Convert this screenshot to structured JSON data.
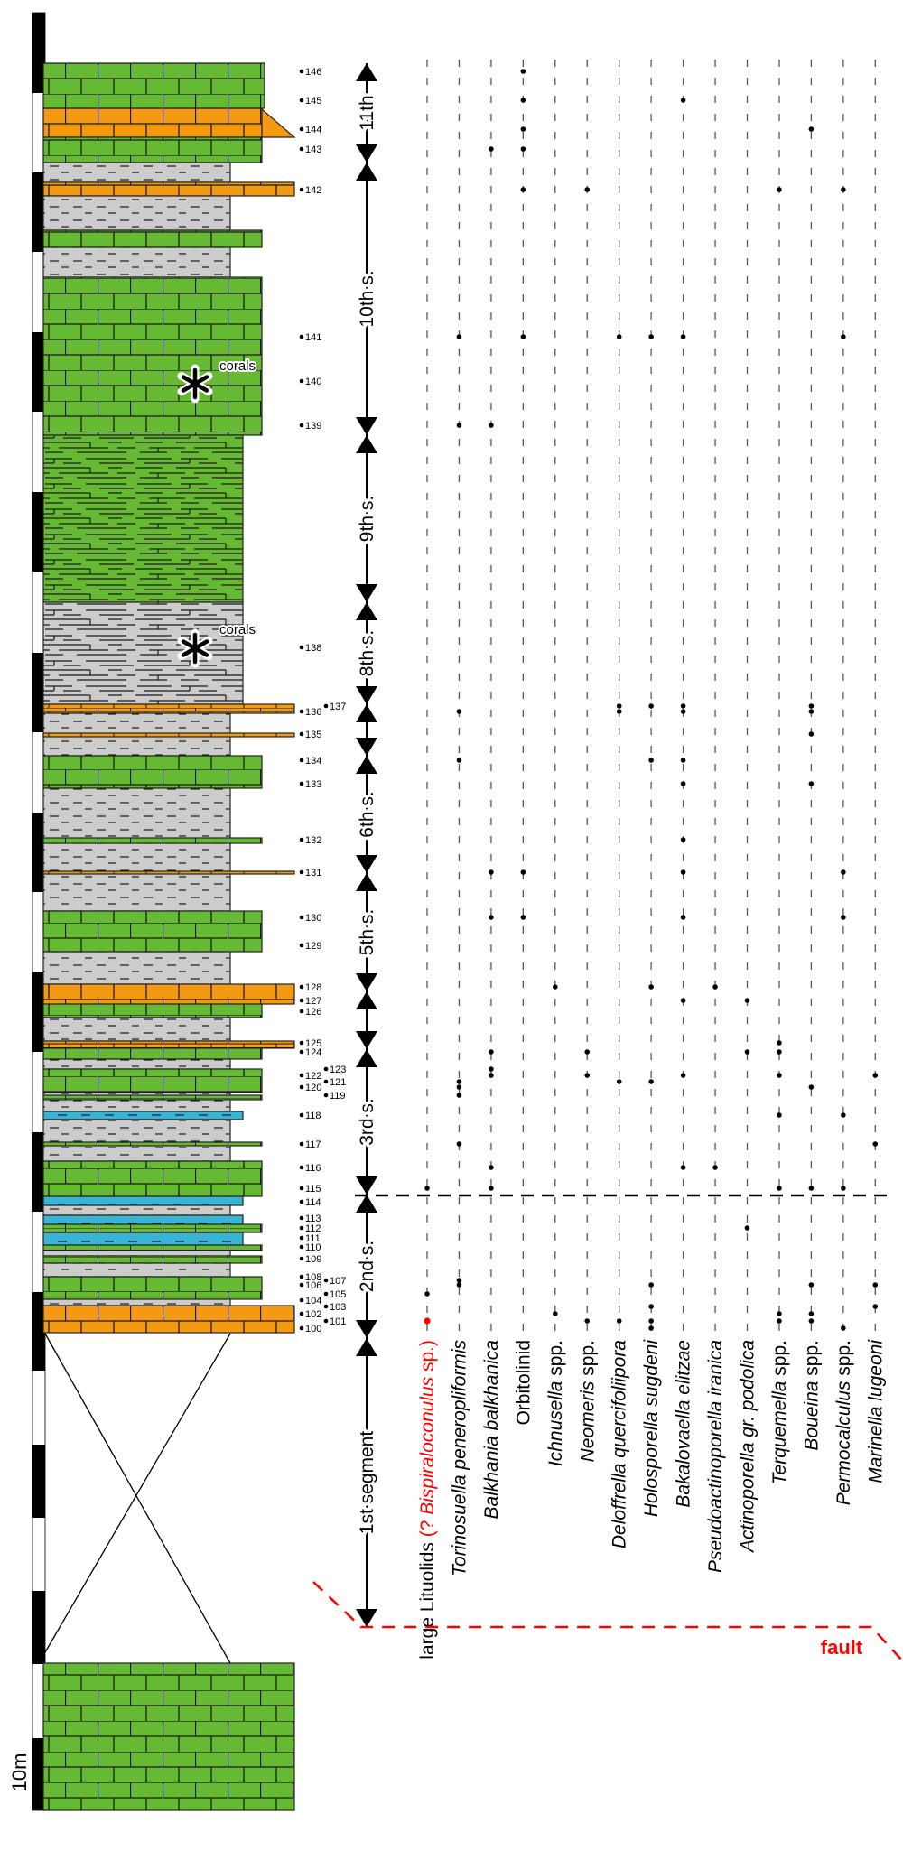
{
  "scale_bar": {
    "label": "10m"
  },
  "colors": {
    "limestone": "#66b933",
    "orange_limestone": "#f39a12",
    "shale": "#cccccc",
    "blue_bed": "#3ab4d5",
    "highlight": "#ff0000",
    "fault": "#ff0000"
  },
  "annotations": {
    "coral_upper": "corals",
    "coral_lower": "corals",
    "fault": "fault"
  },
  "segments": [
    {
      "label": "11th"
    },
    {
      "label": "10th s."
    },
    {
      "label": "9th s."
    },
    {
      "label": "8th s."
    },
    {
      "label": ""
    },
    {
      "label": "6th s."
    },
    {
      "label": "5th s."
    },
    {
      "label": ""
    },
    {
      "label": "3rd s."
    },
    {
      "label": "2nd s."
    },
    {
      "label": "1st segment"
    }
  ],
  "samples": [
    146,
    145,
    144,
    143,
    142,
    141,
    140,
    139,
    138,
    137,
    136,
    135,
    134,
    133,
    132,
    131,
    130,
    129,
    128,
    127,
    126,
    125,
    124,
    123,
    122,
    121,
    120,
    119,
    118,
    117,
    116,
    115,
    114,
    113,
    112,
    111,
    110,
    109,
    108,
    107,
    106,
    105,
    104,
    103,
    102,
    101,
    100
  ],
  "taxa": [
    {
      "parts": [
        {
          "text": "large Lituolids ",
          "italic": false,
          "red": false
        },
        {
          "text": "(? ",
          "italic": false,
          "red": true
        },
        {
          "text": "Bispiraloconulus",
          "italic": true,
          "red": true
        },
        {
          "text": " sp.)",
          "italic": false,
          "red": true
        }
      ],
      "occurrences": [
        115,
        105,
        101
      ],
      "highlighted_samples": [
        101
      ]
    },
    {
      "parts": [
        {
          "text": "Torinosuella peneropliformis",
          "italic": true,
          "red": false
        }
      ],
      "occurrences": [
        141,
        139,
        136,
        134,
        121,
        120,
        119,
        117,
        107,
        106
      ]
    },
    {
      "parts": [
        {
          "text": "Balkhania balkhanica",
          "italic": true,
          "red": false
        }
      ],
      "occurrences": [
        143,
        139,
        131,
        130,
        124,
        123,
        122,
        116,
        115
      ]
    },
    {
      "parts": [
        {
          "text": "Orbitolinid",
          "italic": false,
          "red": false
        }
      ],
      "occurrences": [
        146,
        145,
        144,
        143,
        142,
        141,
        131,
        130
      ]
    },
    {
      "parts": [
        {
          "text": "Ichnusella",
          "italic": true,
          "red": false
        },
        {
          "text": " spp.",
          "italic": false,
          "red": false
        }
      ],
      "occurrences": [
        128,
        102
      ]
    },
    {
      "parts": [
        {
          "text": "Neomeris",
          "italic": true,
          "red": false
        },
        {
          "text": " spp.",
          "italic": false,
          "red": false
        }
      ],
      "occurrences": [
        142,
        124,
        122,
        101
      ]
    },
    {
      "parts": [
        {
          "text": "Deloffrella quercifoliipora",
          "italic": true,
          "red": false
        }
      ],
      "occurrences": [
        141,
        137,
        136,
        121,
        101
      ]
    },
    {
      "parts": [
        {
          "text": "Holosporella sugdeni",
          "italic": true,
          "red": false
        }
      ],
      "occurrences": [
        141,
        137,
        134,
        128,
        121,
        106,
        103,
        101,
        100
      ]
    },
    {
      "parts": [
        {
          "text": "Bakalovaella elitzae",
          "italic": true,
          "red": false
        }
      ],
      "occurrences": [
        145,
        141,
        137,
        136,
        134,
        133,
        132,
        131,
        130,
        127,
        122,
        116
      ]
    },
    {
      "parts": [
        {
          "text": "Pseudoactinoporella iranica",
          "italic": true,
          "red": false
        }
      ],
      "occurrences": [
        128,
        116
      ]
    },
    {
      "parts": [
        {
          "text": "Actinoporella gr. podolica",
          "italic": true,
          "red": false
        }
      ],
      "occurrences": [
        127,
        124,
        112
      ]
    },
    {
      "parts": [
        {
          "text": "Terquemella",
          "italic": true,
          "red": false
        },
        {
          "text": " spp.",
          "italic": false,
          "red": false
        }
      ],
      "occurrences": [
        142,
        125,
        124,
        122,
        118,
        115,
        102,
        101
      ]
    },
    {
      "parts": [
        {
          "text": "Boueina",
          "italic": true,
          "red": false
        },
        {
          "text": " spp.",
          "italic": false,
          "red": false
        }
      ],
      "occurrences": [
        144,
        137,
        136,
        135,
        133,
        120,
        115,
        106,
        102,
        101
      ]
    },
    {
      "parts": [
        {
          "text": "Permocalculus",
          "italic": true,
          "red": false
        },
        {
          "text": " spp.",
          "italic": false,
          "red": false
        }
      ],
      "occurrences": [
        142,
        141,
        131,
        130,
        118,
        115,
        100
      ]
    },
    {
      "parts": [
        {
          "text": "Marinella lugeoni",
          "italic": true,
          "red": false
        }
      ],
      "occurrences": [
        122,
        117,
        106,
        103
      ]
    }
  ]
}
